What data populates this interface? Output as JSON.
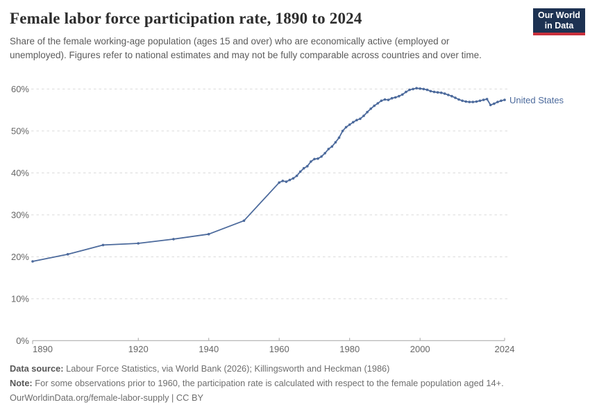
{
  "header": {
    "title": "Female labor force participation rate, 1890 to 2024",
    "subtitle": "Share of the female working-age population (ages 15 and over) who are economically active (employed or unemployed). Figures refer to national estimates and may not be fully comparable across countries and over time.",
    "logo": {
      "line1": "Our World",
      "line2": "in Data"
    }
  },
  "chart_data": {
    "type": "line",
    "title": "Female labor force participation rate, 1890 to 2024",
    "xlabel": "",
    "ylabel": "",
    "xlim": [
      1890,
      2024
    ],
    "ylim": [
      0,
      60
    ],
    "x_ticks": [
      1890,
      1920,
      1940,
      1960,
      1980,
      2000,
      2024
    ],
    "y_ticks": [
      0,
      10,
      20,
      30,
      40,
      50,
      60
    ],
    "y_tick_suffix": "%",
    "grid": "horizontal-dashed",
    "legend_position": "line-end-label",
    "series": [
      {
        "name": "United States",
        "color": "#4C6A9C",
        "points": [
          [
            1890,
            18.9
          ],
          [
            1900,
            20.6
          ],
          [
            1910,
            22.8
          ],
          [
            1920,
            23.2
          ],
          [
            1930,
            24.2
          ],
          [
            1940,
            25.4
          ],
          [
            1950,
            28.6
          ],
          [
            1960,
            37.7
          ],
          [
            1961,
            38.1
          ],
          [
            1962,
            37.9
          ],
          [
            1963,
            38.3
          ],
          [
            1964,
            38.7
          ],
          [
            1965,
            39.3
          ],
          [
            1966,
            40.3
          ],
          [
            1967,
            41.1
          ],
          [
            1968,
            41.6
          ],
          [
            1969,
            42.7
          ],
          [
            1970,
            43.3
          ],
          [
            1971,
            43.4
          ],
          [
            1972,
            43.9
          ],
          [
            1973,
            44.7
          ],
          [
            1974,
            45.7
          ],
          [
            1975,
            46.3
          ],
          [
            1976,
            47.3
          ],
          [
            1977,
            48.4
          ],
          [
            1978,
            50.0
          ],
          [
            1979,
            50.9
          ],
          [
            1980,
            51.5
          ],
          [
            1981,
            52.1
          ],
          [
            1982,
            52.6
          ],
          [
            1983,
            52.9
          ],
          [
            1984,
            53.6
          ],
          [
            1985,
            54.5
          ],
          [
            1986,
            55.3
          ],
          [
            1987,
            56.0
          ],
          [
            1988,
            56.6
          ],
          [
            1989,
            57.2
          ],
          [
            1990,
            57.5
          ],
          [
            1991,
            57.4
          ],
          [
            1992,
            57.8
          ],
          [
            1993,
            58.0
          ],
          [
            1994,
            58.3
          ],
          [
            1995,
            58.7
          ],
          [
            1996,
            59.3
          ],
          [
            1997,
            59.8
          ],
          [
            1998,
            60.0
          ],
          [
            1999,
            60.2
          ],
          [
            2000,
            60.1
          ],
          [
            2001,
            60.0
          ],
          [
            2002,
            59.8
          ],
          [
            2003,
            59.5
          ],
          [
            2004,
            59.3
          ],
          [
            2005,
            59.2
          ],
          [
            2006,
            59.1
          ],
          [
            2007,
            58.9
          ],
          [
            2008,
            58.6
          ],
          [
            2009,
            58.3
          ],
          [
            2010,
            57.9
          ],
          [
            2011,
            57.5
          ],
          [
            2012,
            57.2
          ],
          [
            2013,
            57.0
          ],
          [
            2014,
            56.9
          ],
          [
            2015,
            56.9
          ],
          [
            2016,
            57.0
          ],
          [
            2017,
            57.2
          ],
          [
            2018,
            57.4
          ],
          [
            2019,
            57.6
          ],
          [
            2020,
            56.2
          ],
          [
            2021,
            56.5
          ],
          [
            2022,
            56.9
          ],
          [
            2023,
            57.2
          ],
          [
            2024,
            57.4
          ]
        ]
      }
    ]
  },
  "colors": {
    "line": "#4C6A9C",
    "grid": "#d9d9d9",
    "axis": "#a3a3a3",
    "tick_text": "#666666",
    "logo_bg": "#1d3252",
    "logo_bar": "#c9303c"
  },
  "footer": {
    "source_label": "Data source:",
    "source_text": " Labour Force Statistics, via World Bank (2026); Killingsworth and Heckman (1986)",
    "note_label": "Note:",
    "note_text": " For some observations prior to 1960, the participation rate is calculated with respect to the female population aged 14+.",
    "url_line": "OurWorldinData.org/female-labor-supply | CC BY"
  }
}
